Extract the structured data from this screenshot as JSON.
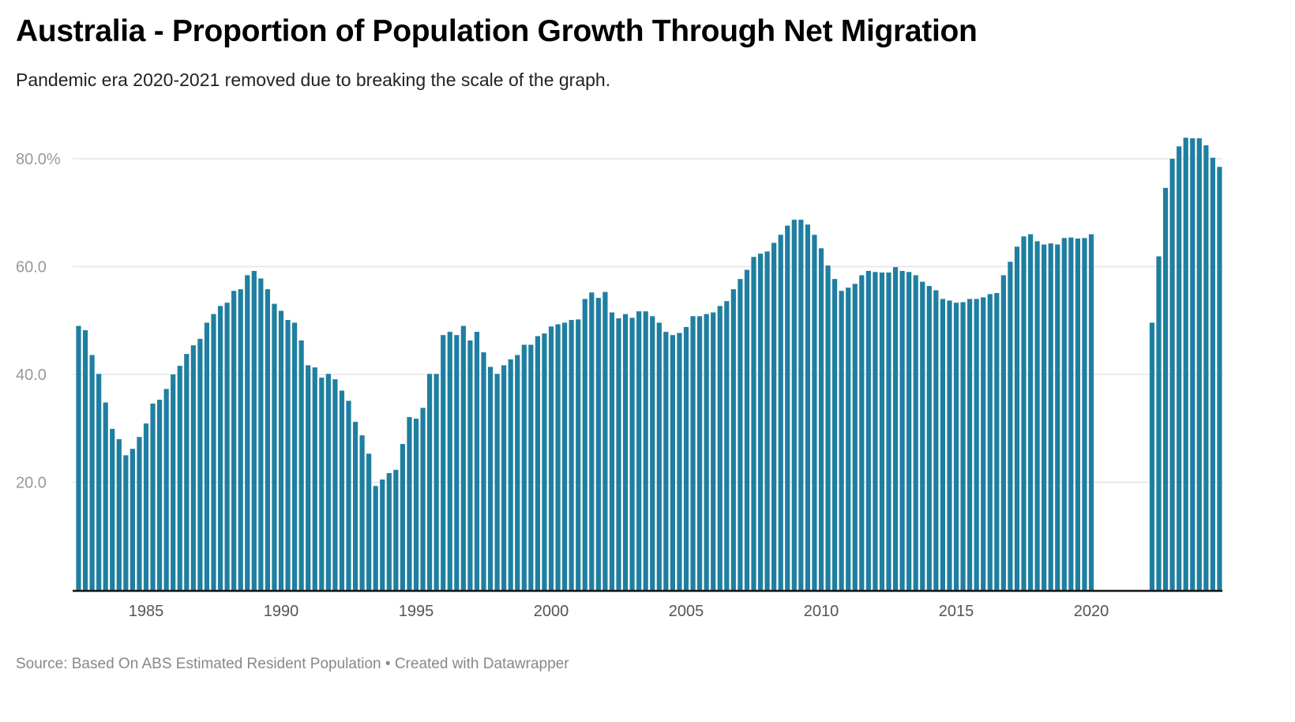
{
  "title": "Australia - Proportion of Population Growth Through Net Migration",
  "subtitle": "Pandemic era 2020-2021 removed due to breaking the scale of the graph.",
  "footer": {
    "source": "Source: Based On ABS Estimated Resident Population",
    "separator": " • ",
    "credit": "Created with Datawrapper"
  },
  "colors": {
    "bar": "#1f7fa0",
    "grid": "#e6e6e6",
    "axis": "#111111"
  },
  "chart_data": {
    "type": "bar",
    "title": "Australia - Proportion of Population Growth Through Net Migration",
    "xlabel": "",
    "ylabel": "",
    "x_start": 1982.5,
    "x_step": 0.25,
    "xlim": [
      1982.4,
      2024.95
    ],
    "ylim": [
      0,
      80
    ],
    "grid": true,
    "y_ticks": [
      {
        "value": 20,
        "label": "20.0"
      },
      {
        "value": 40,
        "label": "40.0"
      },
      {
        "value": 60,
        "label": "60.0"
      },
      {
        "value": 80,
        "label": "80.0%"
      }
    ],
    "x_ticks": [
      {
        "value": 1985,
        "label": "1985"
      },
      {
        "value": 1990,
        "label": "1990"
      },
      {
        "value": 1995,
        "label": "1995"
      },
      {
        "value": 2000,
        "label": "2000"
      },
      {
        "value": 2005,
        "label": "2005"
      },
      {
        "value": 2010,
        "label": "2010"
      },
      {
        "value": 2015,
        "label": "2015"
      },
      {
        "value": 2020,
        "label": "2020"
      }
    ],
    "values": [
      49.0,
      48.2,
      43.6,
      40.1,
      34.8,
      29.9,
      28.0,
      25.0,
      26.2,
      28.4,
      30.9,
      34.6,
      35.3,
      37.3,
      40.0,
      41.6,
      43.8,
      45.4,
      46.6,
      49.6,
      51.2,
      52.7,
      53.3,
      55.5,
      55.8,
      58.4,
      59.2,
      57.8,
      55.8,
      53.1,
      51.8,
      50.1,
      49.6,
      46.3,
      41.7,
      41.3,
      39.4,
      40.1,
      39.1,
      37.0,
      35.1,
      31.2,
      28.7,
      25.3,
      19.3,
      20.5,
      21.7,
      22.3,
      27.1,
      32.1,
      31.8,
      33.8,
      40.1,
      40.1,
      47.3,
      47.9,
      47.3,
      49.0,
      46.3,
      47.9,
      44.1,
      41.4,
      40.1,
      41.7,
      42.8,
      43.6,
      45.5,
      45.5,
      47.1,
      47.6,
      48.9,
      49.3,
      49.6,
      50.1,
      50.2,
      54.0,
      55.2,
      54.2,
      55.3,
      51.5,
      50.4,
      51.2,
      50.5,
      51.7,
      51.7,
      50.8,
      49.6,
      47.9,
      47.3,
      47.7,
      48.8,
      50.8,
      50.8,
      51.2,
      51.5,
      52.7,
      53.6,
      55.8,
      57.7,
      59.4,
      61.8,
      62.4,
      62.8,
      64.4,
      65.9,
      67.6,
      68.7,
      68.7,
      67.8,
      65.9,
      63.4,
      60.2,
      57.7,
      55.5,
      56.1,
      56.8,
      58.4,
      59.2,
      59.0,
      58.9,
      58.9,
      59.9,
      59.2,
      59.0,
      58.4,
      57.2,
      56.4,
      55.6,
      54.0,
      53.7,
      53.3,
      53.4,
      54.0,
      54.0,
      54.3,
      54.9,
      55.1,
      58.4,
      60.9,
      63.7,
      65.6,
      66.0,
      64.7,
      64.1,
      64.3,
      64.1,
      65.3,
      65.4,
      65.2,
      65.3,
      66.0,
      null,
      null,
      null,
      null,
      null,
      null,
      null,
      null,
      49.6,
      61.9,
      74.6,
      80.0,
      82.3,
      83.9,
      83.8,
      83.8,
      82.5,
      80.2,
      78.5
    ]
  }
}
